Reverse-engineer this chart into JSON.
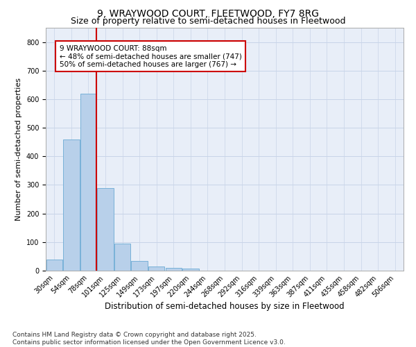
{
  "title1": "9, WRAYWOOD COURT, FLEETWOOD, FY7 8RG",
  "title2": "Size of property relative to semi-detached houses in Fleetwood",
  "xlabel": "Distribution of semi-detached houses by size in Fleetwood",
  "ylabel": "Number of semi-detached properties",
  "bar_labels": [
    "30sqm",
    "54sqm",
    "78sqm",
    "101sqm",
    "125sqm",
    "149sqm",
    "173sqm",
    "197sqm",
    "220sqm",
    "244sqm",
    "268sqm",
    "292sqm",
    "316sqm",
    "339sqm",
    "363sqm",
    "387sqm",
    "411sqm",
    "435sqm",
    "458sqm",
    "482sqm",
    "506sqm"
  ],
  "bar_values": [
    40,
    460,
    620,
    290,
    95,
    33,
    15,
    10,
    8,
    0,
    0,
    0,
    0,
    0,
    0,
    0,
    0,
    0,
    0,
    0,
    0
  ],
  "bar_color": "#b8d0ea",
  "bar_edge_color": "#6aaad4",
  "grid_color": "#c8d4e8",
  "background_color": "#e8eef8",
  "vline_x": 2.47,
  "vline_color": "#cc0000",
  "annotation_text": "9 WRAYWOOD COURT: 88sqm\n← 48% of semi-detached houses are smaller (747)\n50% of semi-detached houses are larger (767) →",
  "annotation_box_color": "#ffffff",
  "annotation_box_edge": "#cc0000",
  "ylim": [
    0,
    850
  ],
  "yticks": [
    0,
    100,
    200,
    300,
    400,
    500,
    600,
    700,
    800
  ],
  "footnote": "Contains HM Land Registry data © Crown copyright and database right 2025.\nContains public sector information licensed under the Open Government Licence v3.0.",
  "title1_fontsize": 10,
  "title2_fontsize": 9,
  "xlabel_fontsize": 8.5,
  "ylabel_fontsize": 8,
  "tick_fontsize": 7,
  "annotation_fontsize": 7.5,
  "footnote_fontsize": 6.5
}
